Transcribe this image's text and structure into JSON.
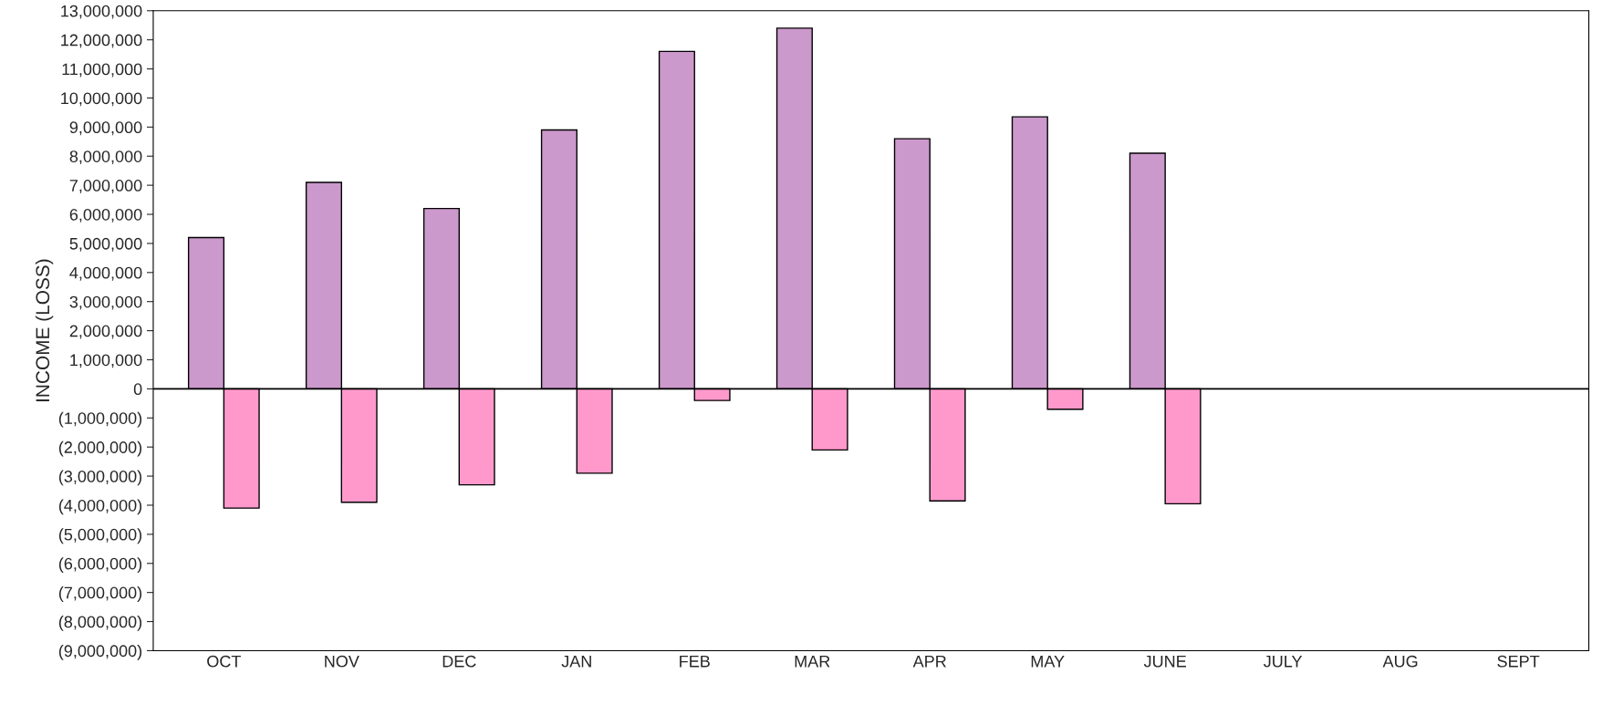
{
  "chart_data": {
    "type": "bar",
    "ylabel": "INCOME (LOSS)",
    "categories": [
      "OCT",
      "NOV",
      "DEC",
      "JAN",
      "FEB",
      "MAR",
      "APR",
      "MAY",
      "JUNE",
      "JULY",
      "AUG",
      "SEPT"
    ],
    "series": [
      {
        "color": "#cc99cc",
        "values": [
          5200000,
          7100000,
          6200000,
          8900000,
          11600000,
          12400000,
          8600000,
          9350000,
          8100000,
          null,
          null,
          null
        ]
      },
      {
        "color": "#ff99cc",
        "values": [
          -4100000,
          -3900000,
          -3300000,
          -2900000,
          -400000,
          -2100000,
          -3850000,
          -700000,
          -3950000,
          null,
          null,
          null
        ]
      }
    ],
    "ylim": [
      -9000000,
      13000000
    ],
    "yticks": [
      {
        "value": -9000000,
        "label": "(9,000,000)"
      },
      {
        "value": -8000000,
        "label": "(8,000,000)"
      },
      {
        "value": -7000000,
        "label": "(7,000,000)"
      },
      {
        "value": -6000000,
        "label": "(6,000,000)"
      },
      {
        "value": -5000000,
        "label": "(5,000,000)"
      },
      {
        "value": -4000000,
        "label": "(4,000,000)"
      },
      {
        "value": -3000000,
        "label": "(3,000,000)"
      },
      {
        "value": -2000000,
        "label": "(2,000,000)"
      },
      {
        "value": -1000000,
        "label": "(1,000,000)"
      },
      0,
      {
        "value": 1000000,
        "label": "1,000,000"
      },
      {
        "value": 2000000,
        "label": "2,000,000"
      },
      {
        "value": 3000000,
        "label": "3,000,000"
      },
      {
        "value": 4000000,
        "label": "4,000,000"
      },
      {
        "value": 5000000,
        "label": "5,000,000"
      },
      {
        "value": 6000000,
        "label": "6,000,000"
      },
      {
        "value": 7000000,
        "label": "7,000,000"
      },
      {
        "value": 8000000,
        "label": "8,000,000"
      },
      {
        "value": 9000000,
        "label": "9,000,000"
      },
      {
        "value": 10000000,
        "label": "10,000,000"
      },
      {
        "value": 11000000,
        "label": "11,000,000"
      },
      {
        "value": 12000000,
        "label": "12,000,000"
      },
      {
        "value": 13000000,
        "label": "13,000,000"
      }
    ],
    "ref_lines": [
      {
        "axis": "y",
        "value": 0,
        "color": "#000000"
      }
    ],
    "grid": false
  }
}
